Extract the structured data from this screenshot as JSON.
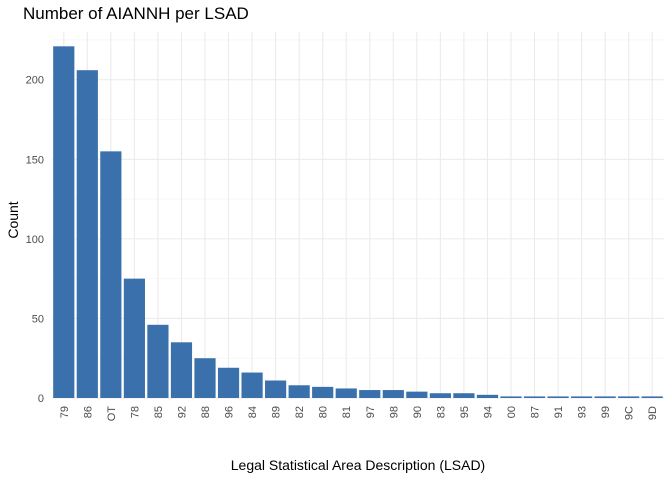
{
  "chart_data": {
    "type": "bar",
    "title": "Number of AIANNH per LSAD",
    "xlabel": "Legal Statistical Area Description (LSAD)",
    "ylabel": "Count",
    "categories": [
      "79",
      "86",
      "OT",
      "78",
      "85",
      "92",
      "88",
      "96",
      "84",
      "89",
      "82",
      "80",
      "81",
      "97",
      "98",
      "90",
      "83",
      "95",
      "94",
      "00",
      "87",
      "91",
      "93",
      "99",
      "9C",
      "9D"
    ],
    "values": [
      221,
      206,
      155,
      75,
      46,
      35,
      25,
      19,
      16,
      11,
      8,
      7,
      6,
      5,
      5,
      4,
      3,
      3,
      2,
      1,
      1,
      1,
      1,
      1,
      1,
      1
    ],
    "ylim": [
      0,
      230
    ],
    "yticks": [
      0,
      50,
      100,
      150,
      200
    ],
    "grid": true,
    "bar_color": "#3a71ac",
    "legend": "none"
  }
}
